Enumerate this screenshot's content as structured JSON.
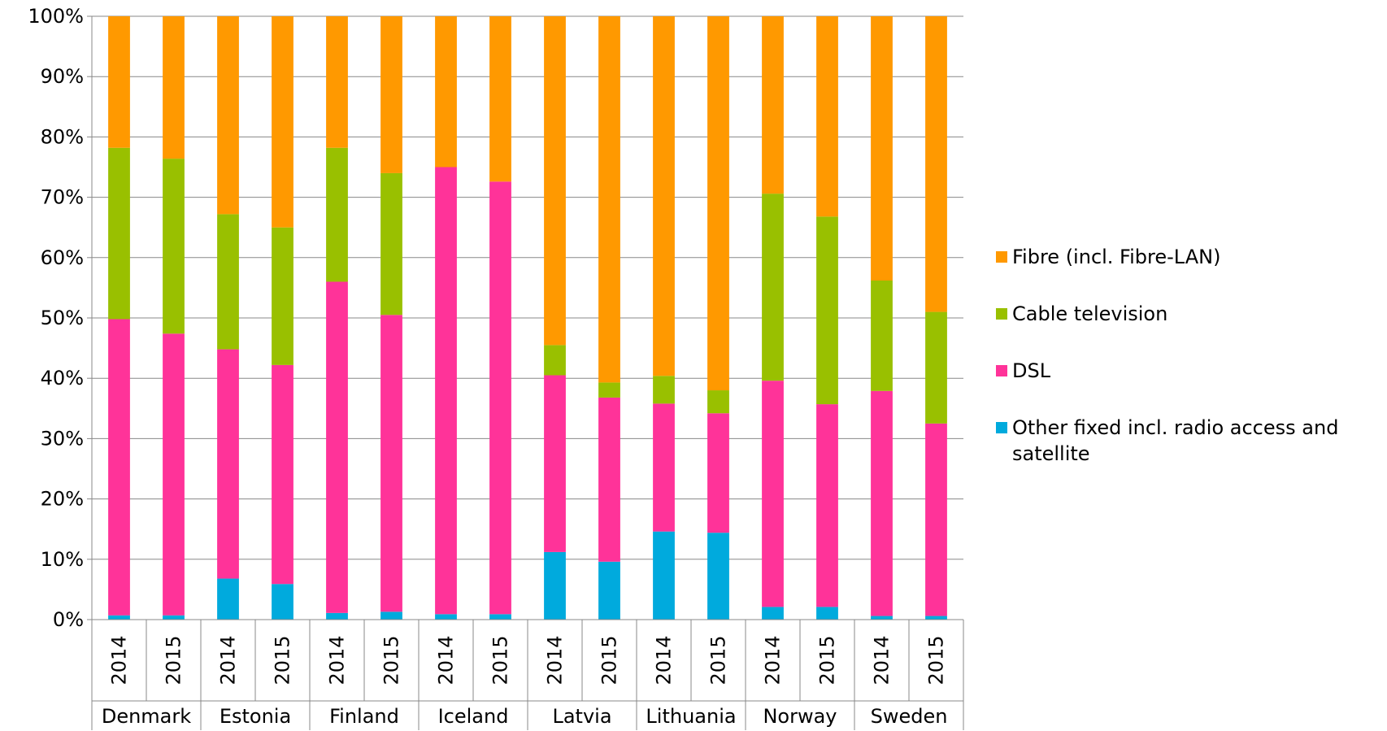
{
  "chart_data": {
    "type": "stacked-bar",
    "categories": [
      "2014",
      "2015",
      "2014",
      "2015",
      "2014",
      "2015",
      "2014",
      "2015",
      "2014",
      "2015",
      "2014",
      "2015",
      "2014",
      "2015",
      "2014",
      "2015"
    ],
    "groups": [
      "Denmark",
      "Estonia",
      "Finland",
      "Iceland",
      "Latvia",
      "Lithuania",
      "Norway",
      "Sweden"
    ],
    "series": [
      {
        "name": "Other fixed incl. radio access and satellite",
        "color": "#00aadd",
        "values": [
          0.7,
          0.7,
          6.8,
          5.9,
          1.1,
          1.3,
          0.9,
          0.9,
          11.2,
          9.6,
          14.6,
          14.4,
          2.1,
          2.1,
          0.6,
          0.6
        ]
      },
      {
        "name": "DSL",
        "color": "#ff3399",
        "values": [
          49.1,
          46.7,
          38.0,
          36.3,
          54.9,
          49.2,
          74.1,
          71.7,
          29.3,
          27.2,
          21.2,
          19.8,
          37.5,
          33.6,
          37.3,
          31.9
        ]
      },
      {
        "name": "Cable television",
        "color": "#99c000",
        "values": [
          28.4,
          29.0,
          22.4,
          22.8,
          22.2,
          23.5,
          0,
          0,
          5.0,
          2.5,
          4.6,
          3.8,
          31.0,
          31.1,
          18.3,
          18.5
        ]
      },
      {
        "name": "Fibre (incl. Fibre-LAN)",
        "color": "#ff9900",
        "values": [
          21.8,
          23.6,
          32.8,
          35.0,
          21.8,
          26.0,
          25.0,
          27.4,
          54.5,
          60.7,
          59.6,
          62.0,
          29.4,
          33.2,
          43.8,
          49.0
        ]
      }
    ],
    "ylim": [
      0,
      100
    ],
    "yticks": [
      {
        "value": 0,
        "label": "0%"
      },
      {
        "value": 10,
        "label": "10%"
      },
      {
        "value": 20,
        "label": "20%"
      },
      {
        "value": 30,
        "label": "30%"
      },
      {
        "value": 40,
        "label": "40%"
      },
      {
        "value": 50,
        "label": "50%"
      },
      {
        "value": 60,
        "label": "60%"
      },
      {
        "value": 70,
        "label": "70%"
      },
      {
        "value": 80,
        "label": "80%"
      },
      {
        "value": 90,
        "label": "90%"
      },
      {
        "value": 100,
        "label": "100%"
      }
    ],
    "grid": true,
    "legend": "right"
  }
}
